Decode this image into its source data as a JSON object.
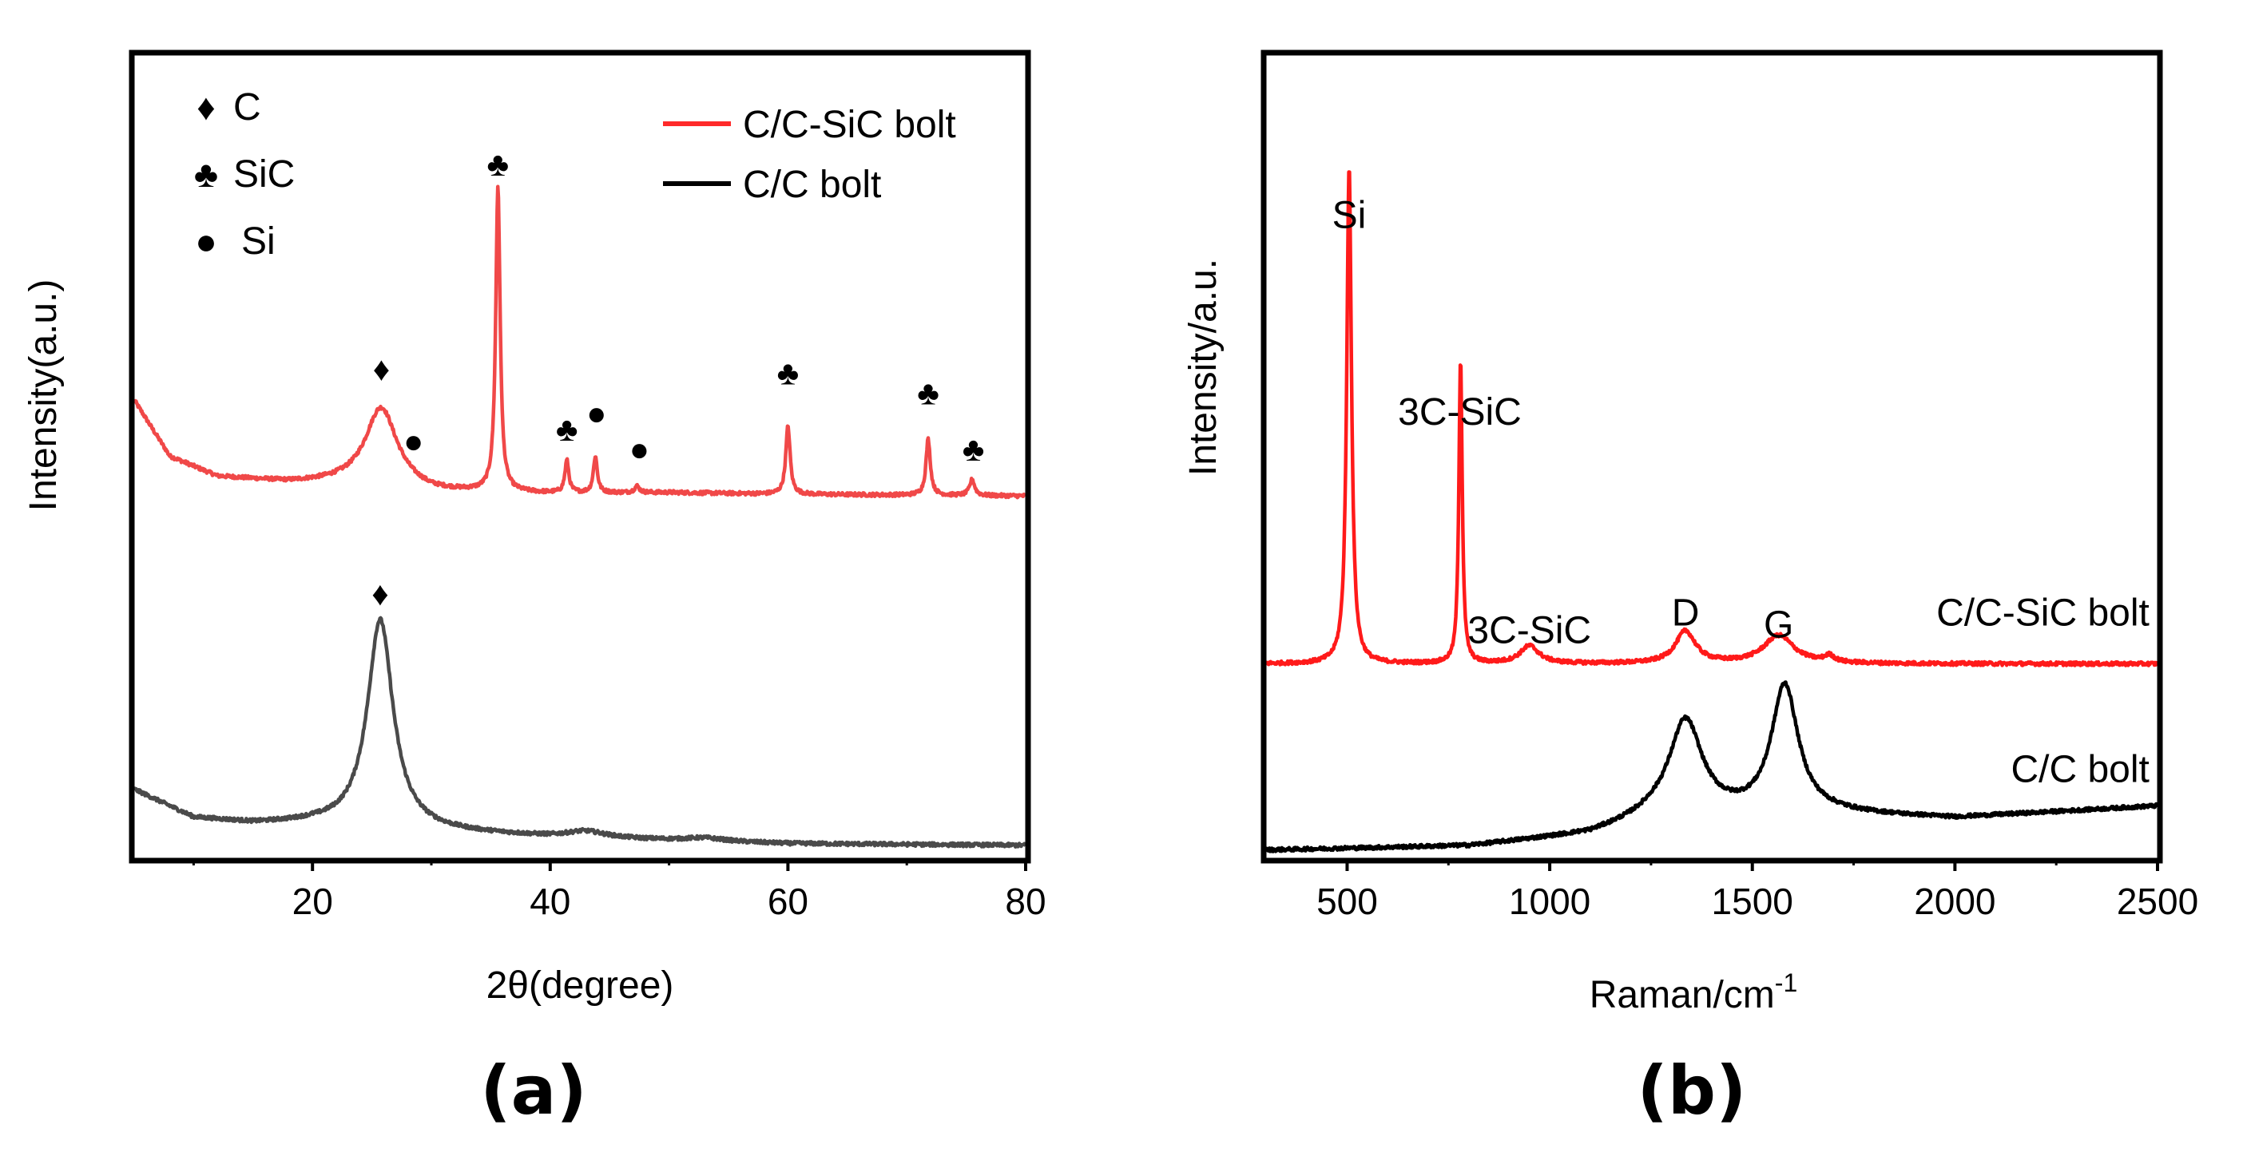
{
  "chart_data": [
    {
      "id": "a",
      "type": "line",
      "panel_label": "(a)",
      "xlabel": "2θ(degree)",
      "ylabel": "Intensity(a.u.)",
      "xlim": [
        5,
        80
      ],
      "ylim": [
        0,
        100
      ],
      "x_ticks": [
        20,
        40,
        60,
        80
      ],
      "show_y_ticks": false,
      "grid": false,
      "colors": {
        "red": "#f04848",
        "black": "#4a4a4a"
      },
      "legend": {
        "position": "top-right",
        "entries": [
          {
            "label": "C/C-SiC bolt",
            "color": "#ff2a2a"
          },
          {
            "label": "C/C bolt",
            "color": "#000000"
          }
        ]
      },
      "symbol_key": {
        "position": "top-left",
        "entries": [
          {
            "symbol": "♦",
            "label": "C"
          },
          {
            "symbol": "♣",
            "label": "SiC"
          },
          {
            "symbol": "●",
            "label": "Si"
          }
        ]
      },
      "series": [
        {
          "color": "#f04848",
          "baseline": [
            [
              5,
              57
            ],
            [
              8,
              50
            ],
            [
              12,
              47.5
            ],
            [
              18,
              46.8
            ],
            [
              25,
              46.8
            ],
            [
              30,
              45.6
            ],
            [
              40,
              45.4
            ],
            [
              50,
              45.5
            ],
            [
              60,
              45.3
            ],
            [
              70,
              45.2
            ],
            [
              80,
              45.1
            ]
          ],
          "peaks": [
            {
              "x": 25.8,
              "height": 9.5,
              "width": 1.6
            },
            {
              "x": 35.6,
              "height": 38,
              "width": 0.22
            },
            {
              "x": 41.4,
              "height": 4,
              "width": 0.2
            },
            {
              "x": 43.8,
              "height": 4.5,
              "width": 0.2
            },
            {
              "x": 47.3,
              "height": 0.8,
              "width": 0.25
            },
            {
              "x": 60.0,
              "height": 8.5,
              "width": 0.22
            },
            {
              "x": 71.8,
              "height": 7,
              "width": 0.22
            },
            {
              "x": 75.5,
              "height": 2,
              "width": 0.25
            }
          ]
        },
        {
          "color": "#4a4a4a",
          "baseline": [
            [
              5,
              8.5
            ],
            [
              10,
              5
            ],
            [
              15,
              4.3
            ],
            [
              20,
              4.3
            ],
            [
              30,
              3.3
            ],
            [
              40,
              2.6
            ],
            [
              50,
              2.2
            ],
            [
              60,
              1.8
            ],
            [
              70,
              1.7
            ],
            [
              80,
              1.6
            ]
          ],
          "peaks": [
            {
              "x": 25.7,
              "height": 26,
              "width": 1.3
            },
            {
              "x": 43.0,
              "height": 0.8,
              "width": 2
            },
            {
              "x": 53.0,
              "height": 0.4,
              "width": 2
            }
          ]
        }
      ],
      "peak_markers": [
        {
          "symbol": "♦",
          "x": 25.8,
          "y": 59.5
        },
        {
          "symbol": "●",
          "x": 28.5,
          "y": 50.5
        },
        {
          "symbol": "♣",
          "x": 35.6,
          "y": 85
        },
        {
          "symbol": "♣",
          "x": 41.4,
          "y": 52
        },
        {
          "symbol": "●",
          "x": 43.9,
          "y": 54
        },
        {
          "symbol": "●",
          "x": 47.5,
          "y": 49.5
        },
        {
          "symbol": "♣",
          "x": 60.0,
          "y": 59
        },
        {
          "symbol": "♣",
          "x": 71.8,
          "y": 56.5
        },
        {
          "symbol": "♣",
          "x": 75.6,
          "y": 49.5
        },
        {
          "symbol": "♦",
          "x": 25.7,
          "y": 31.5
        }
      ]
    },
    {
      "id": "b",
      "type": "line",
      "panel_label": "(b)",
      "xlabel": "Raman/cm",
      "xlabel_superscript": "-1",
      "ylabel": "Intensity/a.u.",
      "xlim": [
        300,
        2500
      ],
      "ylim": [
        0,
        100
      ],
      "x_ticks": [
        500,
        1000,
        1500,
        2000,
        2500
      ],
      "show_y_ticks": false,
      "grid": false,
      "colors": {
        "red": "#ff1a1a",
        "black": "#000000"
      },
      "series": [
        {
          "name": "C/C-SiC bolt",
          "color": "#ff1a1a",
          "baseline": [
            [
              300,
              24.2
            ],
            [
              2500,
              24.2
            ]
          ],
          "peaks": [
            {
              "x": 505,
              "height": 62,
              "width": 7
            },
            {
              "x": 780,
              "height": 38,
              "width": 5
            },
            {
              "x": 950,
              "height": 2.2,
              "width": 28
            },
            {
              "x": 1335,
              "height": 4,
              "width": 30
            },
            {
              "x": 1565,
              "height": 3.5,
              "width": 45
            },
            {
              "x": 1690,
              "height": 0.8,
              "width": 15
            }
          ]
        },
        {
          "name": "C/C bolt",
          "color": "#000000",
          "baseline": [
            [
              300,
              1
            ],
            [
              800,
              1.5
            ],
            [
              1100,
              3
            ],
            [
              1250,
              5
            ],
            [
              1700,
              5.5
            ],
            [
              2000,
              5
            ],
            [
              2500,
              6.5
            ]
          ],
          "peaks": [
            {
              "x": 1335,
              "height": 12,
              "width": 50
            },
            {
              "x": 1580,
              "height": 16,
              "width": 40
            }
          ]
        }
      ],
      "annotations": [
        {
          "text": "Si",
          "x": 505,
          "y": 78.5
        },
        {
          "text": "3C-SiC",
          "x": 778,
          "y": 54
        },
        {
          "text": "3C-SiC",
          "x": 950,
          "y": 26.8
        },
        {
          "text": "D",
          "x": 1335,
          "y": 29
        },
        {
          "text": "G",
          "x": 1565,
          "y": 27.5
        },
        {
          "text": "C/C-SiC bolt",
          "x": 2480,
          "y": 29,
          "anchor": "end"
        },
        {
          "text": "C/C bolt",
          "x": 2480,
          "y": 9.5,
          "anchor": "end"
        }
      ]
    }
  ]
}
